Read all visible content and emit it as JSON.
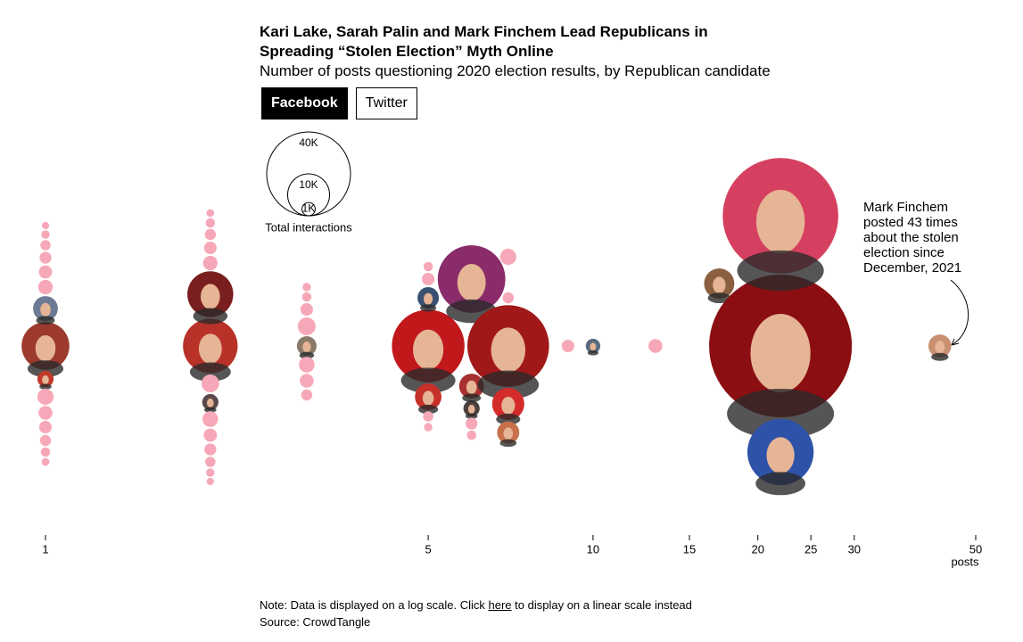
{
  "chart_data": {
    "type": "beeswarm",
    "title": "Kari Lake, Sarah Palin and Mark Finchem Lead Republicans in Spreading “Stolen Election” Myth Online",
    "subtitle": "Number of posts questioning 2020 election results, by Republican candidate",
    "tabs": [
      "Facebook",
      "Twitter"
    ],
    "active_tab": 0,
    "size_legend": {
      "title": "Total interactions",
      "values": [
        40000,
        10000,
        1000
      ],
      "labels": [
        "40K",
        "10K",
        "1K"
      ]
    },
    "x_label": "posts",
    "log_x": true,
    "xlim": [
      1,
      50
    ],
    "xticks": [
      1,
      5,
      10,
      15,
      20,
      25,
      30,
      50
    ],
    "x": [
      1,
      1,
      1,
      1,
      1,
      1,
      1,
      1,
      1,
      1,
      1,
      1,
      1,
      1,
      1,
      2,
      2,
      2,
      2,
      2,
      2,
      2,
      2,
      2,
      2,
      2,
      2,
      2,
      2,
      2,
      3,
      3,
      3,
      3,
      3,
      3,
      3,
      3,
      5,
      5,
      5,
      5,
      5,
      5,
      5,
      6,
      6,
      6,
      6,
      6,
      7,
      7,
      7,
      7,
      7,
      9,
      10,
      13,
      17,
      22,
      22,
      22,
      43
    ],
    "sizes": [
      13000,
      3500,
      1500,
      1200,
      900,
      800,
      700,
      600,
      500,
      1500,
      1100,
      400,
      350,
      300,
      1000,
      17000,
      12000,
      1500,
      1800,
      1400,
      1000,
      800,
      700,
      600,
      500,
      400,
      900,
      300,
      1200,
      350,
      2200,
      1800,
      1400,
      1100,
      900,
      700,
      500,
      400,
      30000,
      4000,
      2600,
      900,
      600,
      500,
      400,
      26000,
      1500,
      3500,
      800,
      500,
      38000,
      5900,
      2800,
      1500,
      700,
      900,
      1200,
      1100,
      5200,
      116000,
      76000,
      25000,
      3000
    ],
    "colors": [
      "#9c3a2e",
      "#6d7a94",
      "#c0392b",
      "#f7a8b8",
      "#f7a8b8",
      "#f7a8b8",
      "#f7a8b8",
      "#f7a8b8",
      "#f7a8b8",
      "#f7a8b8",
      "#f7a8b8",
      "#f7a8b8",
      "#f7a8b8",
      "#f7a8b8",
      "#f7a8b8",
      "#b8322a",
      "#7a1f1f",
      "#5a4a4a",
      "#f7a8b8",
      "#f7a8b8",
      "#f7a8b8",
      "#f7a8b8",
      "#f7a8b8",
      "#f7a8b8",
      "#f7a8b8",
      "#f7a8b8",
      "#f7a8b8",
      "#f7a8b8",
      "#f7a8b8",
      "#f7a8b8",
      "#8a7a6a",
      "#f7a8b8",
      "#f7a8b8",
      "#f7a8b8",
      "#f7a8b8",
      "#f7a8b8",
      "#f7a8b8",
      "#f7a8b8",
      "#c0181b",
      "#c8302a",
      "#3a5070",
      "#f7a8b8",
      "#f7a8b8",
      "#f7a8b8",
      "#f7a8b8",
      "#8a2b6a",
      "#4a4040",
      "#a83030",
      "#f7a8b8",
      "#f7a8b8",
      "#a01818",
      "#d42b2b",
      "#c8704a",
      "#f7a8b8",
      "#f7a8b8",
      "#f7a8b8",
      "#5a6a80",
      "#f7a8b8",
      "#8a6040",
      "#8b0e12",
      "#d64060",
      "#2d52a8",
      "#c89070"
    ],
    "annotation": "Mark Finchem posted 43 times about the stolen election since December, 2021",
    "note": {
      "before": "Note: Data is displayed on a log scale. Click ",
      "link": "here",
      "after": " to display on a linear scale instead"
    },
    "source": "Source: CrowdTangle"
  }
}
